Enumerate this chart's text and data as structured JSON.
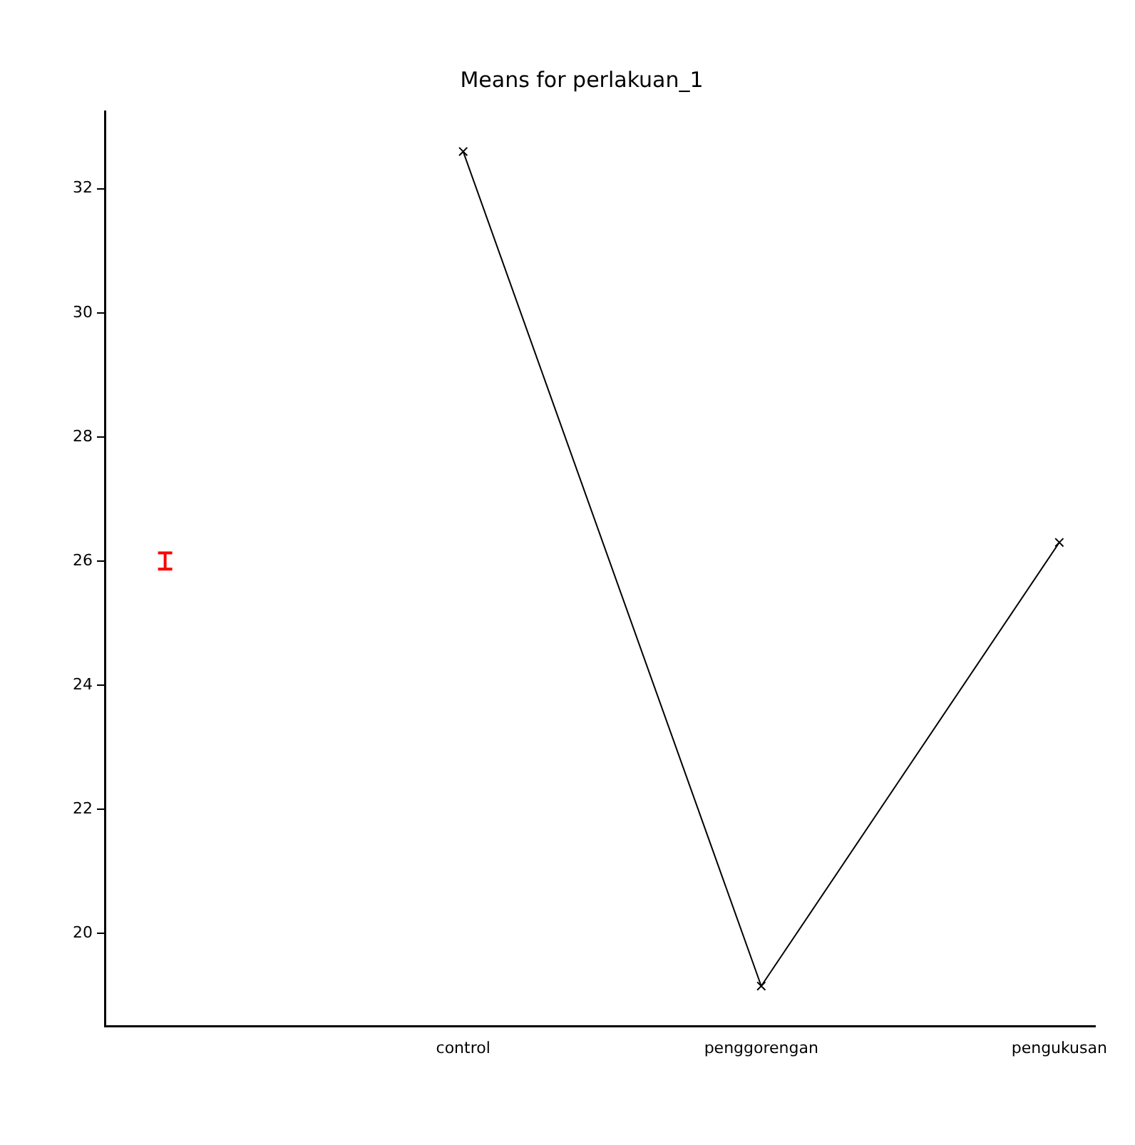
{
  "chart_data": {
    "type": "line",
    "title": "Means for perlakuan_1",
    "categories": [
      null,
      "control",
      "penggorengan",
      "pengukusan"
    ],
    "series": [
      {
        "type": "line",
        "color": "#000000",
        "values": [
          null,
          32.6,
          19.15,
          26.3
        ],
        "marker": "cross"
      },
      {
        "type": "scatter",
        "color": "#ff0000",
        "values": [
          26,
          null,
          null,
          null
        ],
        "errors": [
          0.13,
          null,
          null,
          null
        ]
      }
    ],
    "ylim": [
      18.5,
      33.25
    ],
    "yticks": [
      20,
      22,
      24,
      26,
      28,
      30,
      32
    ],
    "grid": false,
    "legend": false
  }
}
